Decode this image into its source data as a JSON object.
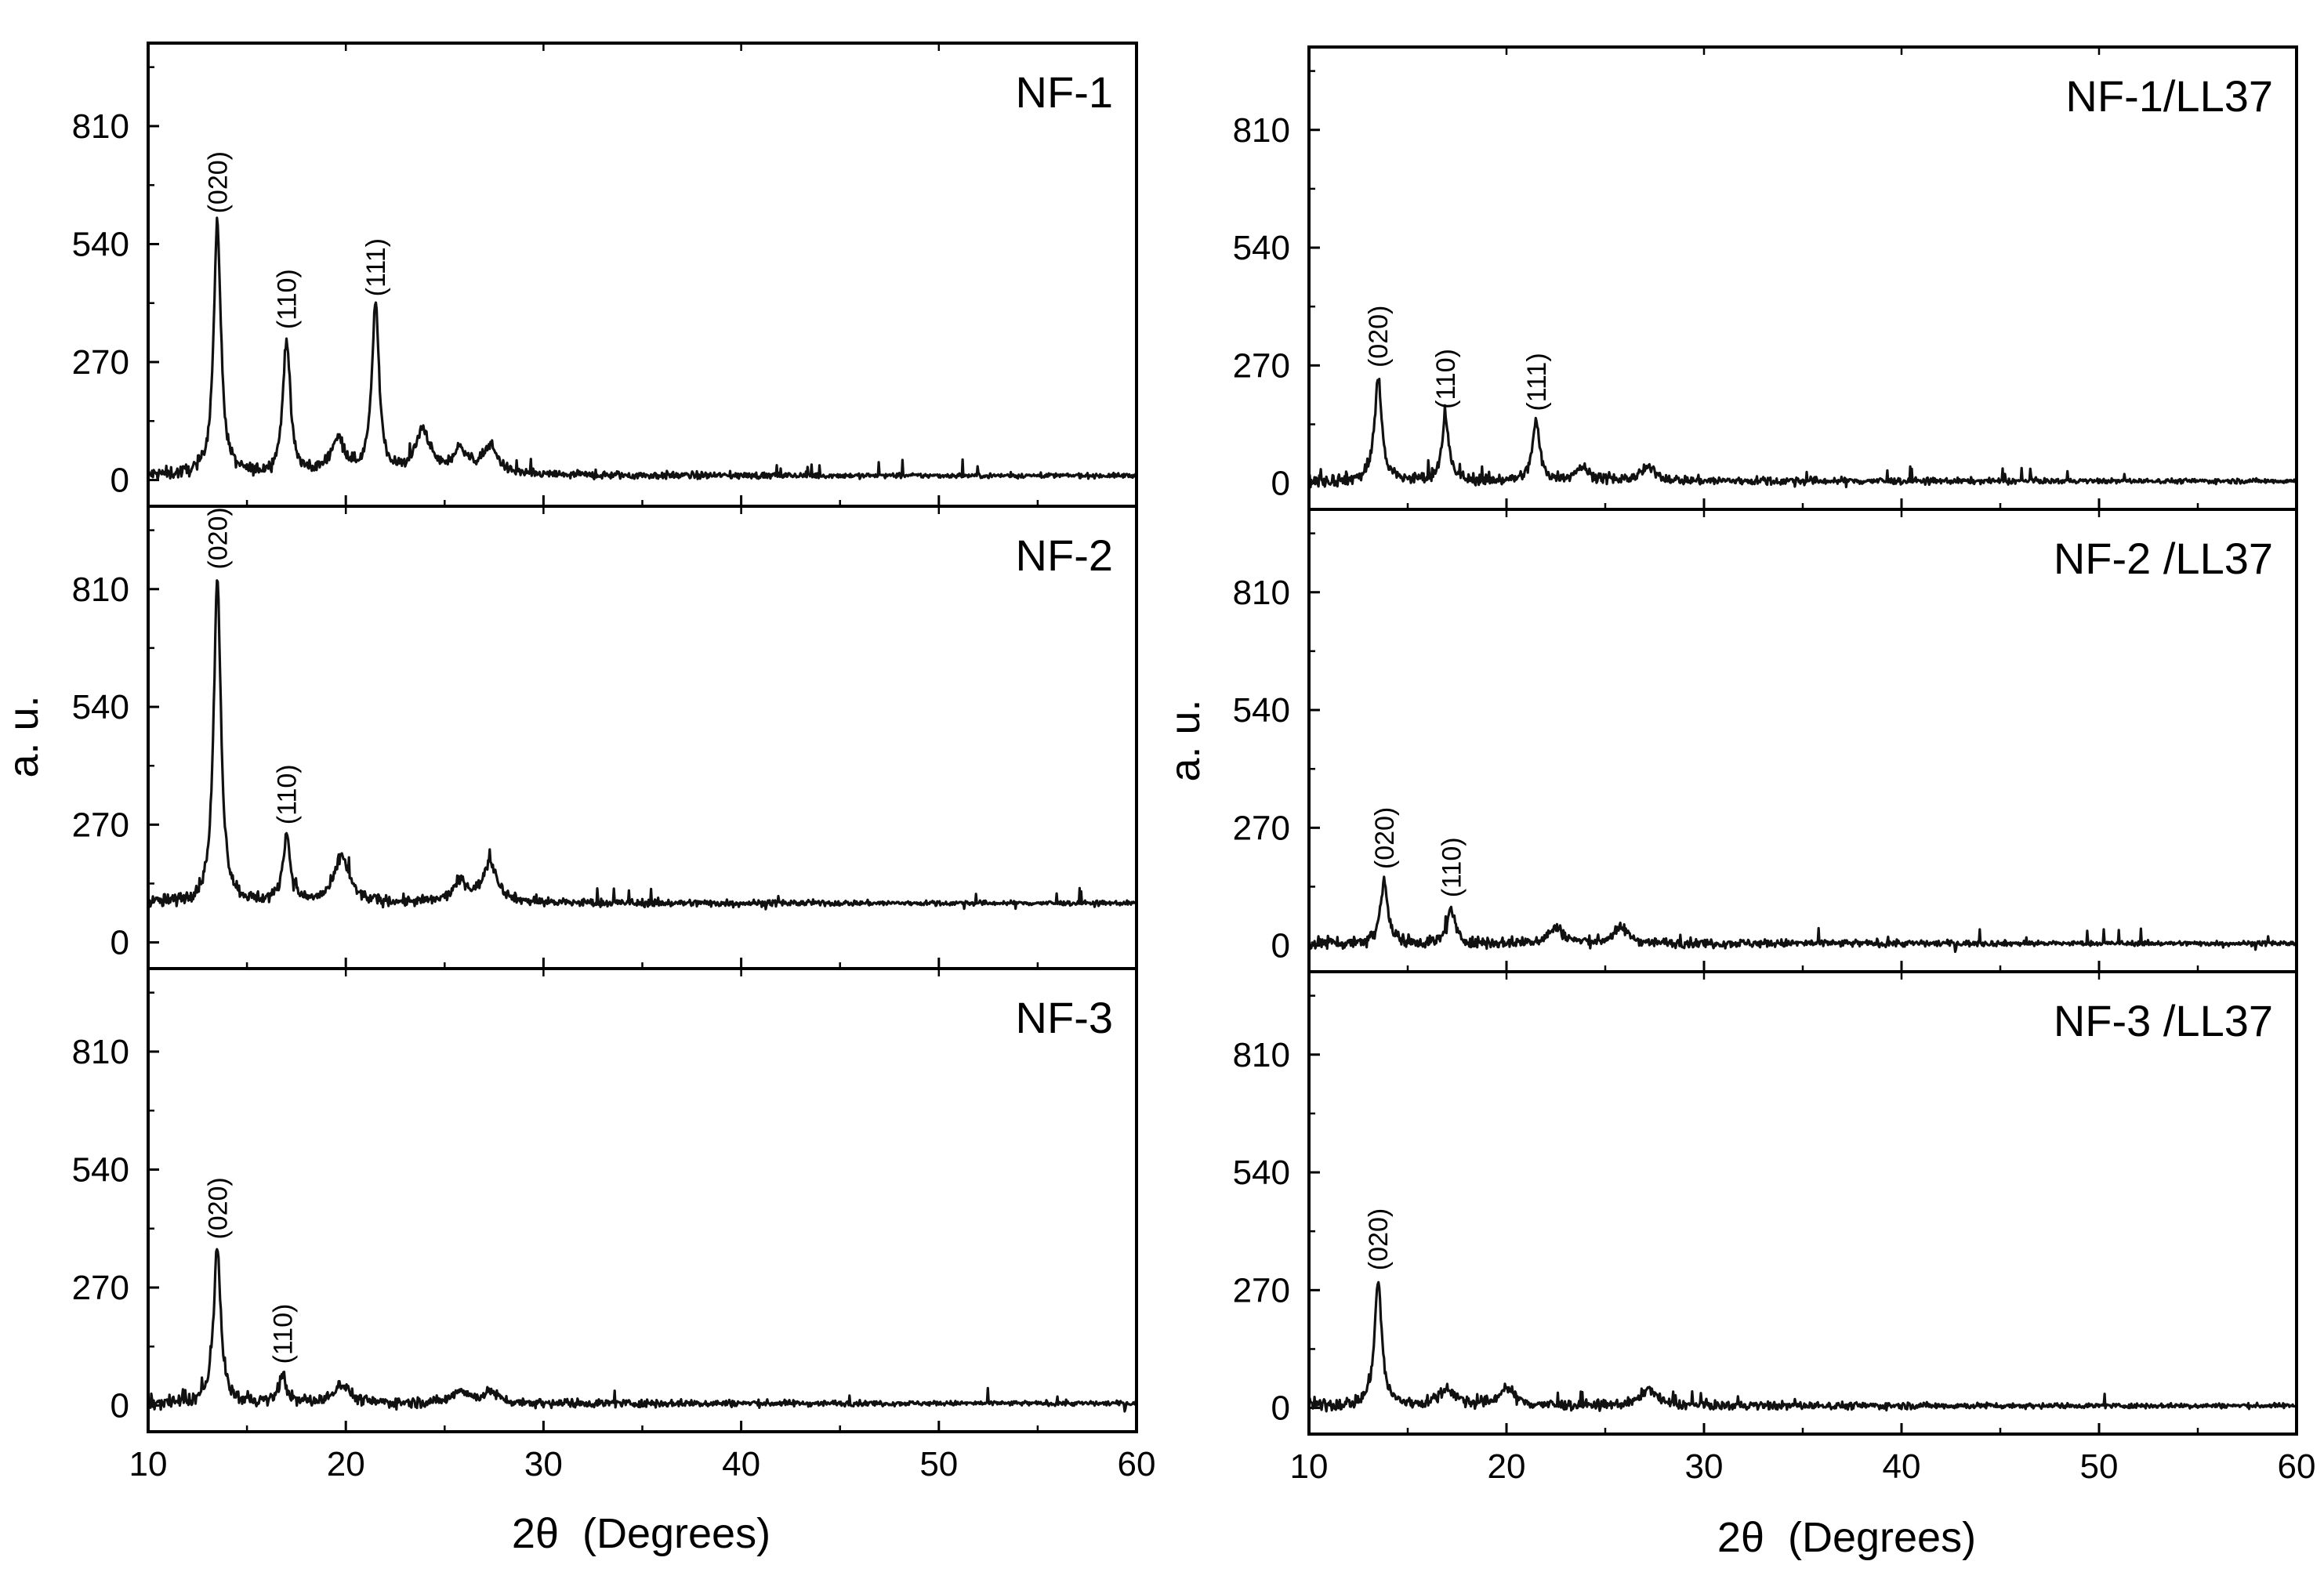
{
  "chart_data": {
    "type": "line",
    "xlabel": "2θ  (Degrees)",
    "ylabel": "a. u.",
    "xlim": [
      10,
      60
    ],
    "ylim": [
      -60,
      1000
    ],
    "x_ticks": [
      10,
      20,
      30,
      40,
      50,
      60
    ],
    "y_ticks": [
      0,
      270,
      540,
      810
    ],
    "grid": false,
    "legend": "none",
    "columns": [
      {
        "panels": [
          {
            "label": "NF-1",
            "baseline": 10,
            "peaks": [
              {
                "x": 13.5,
                "y": 585,
                "label": "(020)"
              },
              {
                "x": 17.0,
                "y": 320,
                "label": "(110)"
              },
              {
                "x": 21.5,
                "y": 395,
                "label": "(111)"
              },
              {
                "x": 19.6,
                "y": 90,
                "label": ""
              },
              {
                "x": 23.9,
                "y": 110,
                "label": ""
              },
              {
                "x": 25.8,
                "y": 65,
                "label": ""
              },
              {
                "x": 27.3,
                "y": 75,
                "label": ""
              }
            ]
          },
          {
            "label": "NF-2",
            "baseline": 90,
            "peaks": [
              {
                "x": 13.5,
                "y": 830,
                "label": "(020)"
              },
              {
                "x": 17.0,
                "y": 245,
                "label": "(110)"
              },
              {
                "x": 19.8,
                "y": 195,
                "label": ""
              },
              {
                "x": 25.8,
                "y": 135,
                "label": ""
              },
              {
                "x": 27.3,
                "y": 180,
                "label": ""
              }
            ]
          },
          {
            "label": "NF-3",
            "baseline": 5,
            "peaks": [
              {
                "x": 13.5,
                "y": 355,
                "label": "(020)"
              },
              {
                "x": 16.8,
                "y": 70,
                "label": "(110)"
              },
              {
                "x": 19.8,
                "y": 50,
                "label": ""
              },
              {
                "x": 25.8,
                "y": 35,
                "label": ""
              },
              {
                "x": 27.3,
                "y": 30,
                "label": ""
              }
            ]
          }
        ]
      },
      {
        "panels": [
          {
            "label": "NF-1/LL37",
            "baseline": 5,
            "peaks": [
              {
                "x": 13.5,
                "y": 240,
                "label": "(020)"
              },
              {
                "x": 16.9,
                "y": 145,
                "label": "(110)"
              },
              {
                "x": 21.5,
                "y": 140,
                "label": "(111)"
              },
              {
                "x": 23.8,
                "y": 35,
                "label": ""
              },
              {
                "x": 27.2,
                "y": 35,
                "label": ""
              }
            ]
          },
          {
            "label": "NF-2 /LL37",
            "baseline": 5,
            "peaks": [
              {
                "x": 13.8,
                "y": 150,
                "label": "(020)"
              },
              {
                "x": 17.2,
                "y": 85,
                "label": "(110)"
              },
              {
                "x": 22.5,
                "y": 40,
                "label": ""
              },
              {
                "x": 25.8,
                "y": 40,
                "label": ""
              }
            ]
          },
          {
            "label": "NF-3 /LL37",
            "baseline": 5,
            "peaks": [
              {
                "x": 13.5,
                "y": 290,
                "label": "(020)"
              },
              {
                "x": 17.0,
                "y": 45,
                "label": ""
              },
              {
                "x": 20.0,
                "y": 45,
                "label": ""
              },
              {
                "x": 27.2,
                "y": 45,
                "label": ""
              }
            ]
          }
        ]
      }
    ]
  }
}
